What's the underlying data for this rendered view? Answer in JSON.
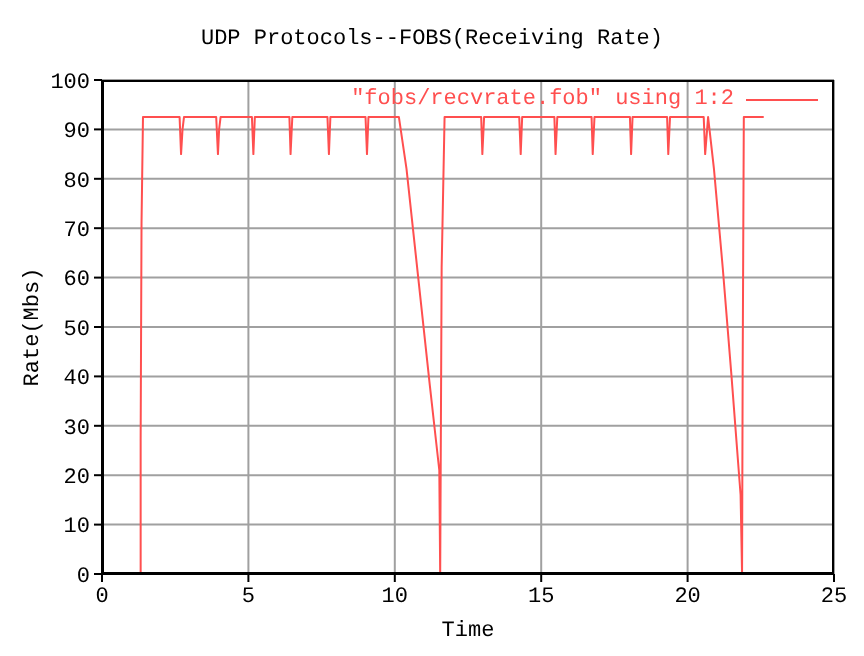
{
  "chart_data": {
    "type": "line",
    "title": "UDP Protocols--FOBS(Receiving Rate)",
    "xlabel": "Time",
    "ylabel": "Rate(Mbs)",
    "xlim": [
      0,
      25
    ],
    "xticks": [
      0,
      5,
      10,
      15,
      20,
      25
    ],
    "ylim": [
      0,
      100
    ],
    "yticks": [
      0,
      10,
      20,
      30,
      40,
      50,
      60,
      70,
      80,
      90,
      100
    ],
    "grid": true,
    "legend": "top right",
    "series": [
      {
        "name": "\"fobs/recvrate.fob\" using 1:2",
        "color": "#ff4f4f",
        "x": [
          1.32,
          1.32,
          1.35,
          1.4,
          2.65,
          2.7,
          2.75,
          2.8,
          3.9,
          3.96,
          4.0,
          4.05,
          5.12,
          5.17,
          5.22,
          6.4,
          6.44,
          6.5,
          7.7,
          7.75,
          7.8,
          9.0,
          9.05,
          9.1,
          10.14,
          10.4,
          10.8,
          11.2,
          11.52,
          11.55,
          11.6,
          11.7,
          12.95,
          12.99,
          13.05,
          14.25,
          14.3,
          14.35,
          15.45,
          15.49,
          15.55,
          16.72,
          16.76,
          16.82,
          18.03,
          18.07,
          18.12,
          19.3,
          19.34,
          19.4,
          20.55,
          20.6,
          20.7,
          20.9,
          21.2,
          21.5,
          21.81,
          21.86,
          21.88,
          21.92,
          22.6
        ],
        "values": [
          0,
          27,
          71,
          92.5,
          92.5,
          85,
          90,
          92.5,
          92.5,
          85,
          90,
          92.5,
          92.5,
          85,
          92.5,
          92.5,
          85,
          92.5,
          92.5,
          85,
          92.5,
          92.5,
          85,
          92.5,
          92.5,
          82,
          60,
          38,
          21,
          0,
          62,
          92.5,
          92.5,
          85,
          92.5,
          92.5,
          85,
          92.5,
          92.5,
          85,
          92.5,
          92.5,
          85,
          92.5,
          92.5,
          85,
          92.5,
          92.5,
          85,
          92.5,
          92.5,
          85,
          92.5,
          82,
          62,
          40,
          16,
          0,
          40,
          92.5,
          92.5
        ]
      }
    ]
  }
}
